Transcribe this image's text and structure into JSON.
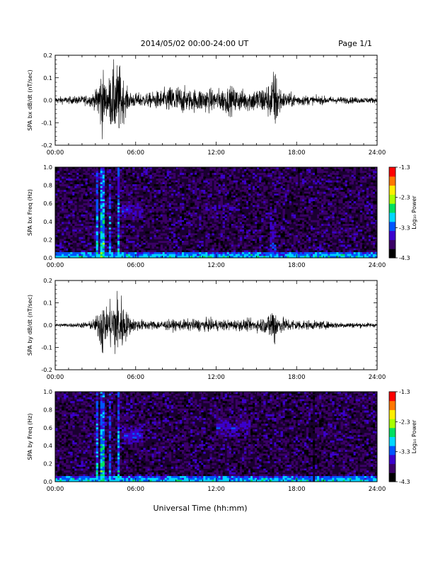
{
  "header": {
    "title": "2014/05/02  00:00-24:00 UT",
    "page": "Page 1/1"
  },
  "xaxis": {
    "label": "Universal Time (hh:mm)",
    "ticks": [
      "00:00",
      "06:00",
      "12:00",
      "18:00",
      "24:00"
    ],
    "range_hours": [
      0,
      24
    ]
  },
  "colorbar": {
    "label": "Log₁₀ Power",
    "ticks": [
      "-1.3",
      "-2.3",
      "-3.3",
      "-4.3"
    ],
    "range": [
      -4.3,
      -1.3
    ],
    "colors": [
      "#000000",
      "#3a0066",
      "#3b00cc",
      "#0055ff",
      "#00d8ff",
      "#00e060",
      "#a8ff00",
      "#ffee00",
      "#ff7700",
      "#ff0000"
    ]
  },
  "chart_data": [
    {
      "type": "line",
      "ylabel": "SPA bx dB/dt (nT/sec)",
      "ylim": [
        -0.2,
        0.2
      ],
      "yticks": [
        "0.2",
        "0.1",
        "0.0",
        "-0.1",
        "-0.2"
      ],
      "xlim": [
        0,
        24
      ],
      "series": [
        {
          "envelope": [
            [
              0,
              0.02
            ],
            [
              1,
              0.02
            ],
            [
              2,
              0.025
            ],
            [
              2.5,
              0.03
            ],
            [
              3,
              0.05
            ],
            [
              3.2,
              0.12
            ],
            [
              3.5,
              0.2
            ],
            [
              3.8,
              0.08
            ],
            [
              4.1,
              0.15
            ],
            [
              4.4,
              0.2
            ],
            [
              4.8,
              0.2
            ],
            [
              5.2,
              0.09
            ],
            [
              5.5,
              0.05
            ],
            [
              6,
              0.04
            ],
            [
              7,
              0.04
            ],
            [
              8,
              0.06
            ],
            [
              9,
              0.09
            ],
            [
              10,
              0.06
            ],
            [
              11,
              0.07
            ],
            [
              12,
              0.06
            ],
            [
              13,
              0.08
            ],
            [
              14,
              0.06
            ],
            [
              15,
              0.07
            ],
            [
              15.5,
              0.08
            ],
            [
              16,
              0.1
            ],
            [
              16.3,
              0.18
            ],
            [
              16.6,
              0.14
            ],
            [
              16.9,
              0.05
            ],
            [
              17.5,
              0.04
            ],
            [
              19,
              0.025
            ],
            [
              21,
              0.02
            ],
            [
              24,
              0.015
            ]
          ]
        }
      ]
    },
    {
      "type": "heatmap",
      "ylabel": "SPA bx Freq (Hz)",
      "ylim": [
        0,
        1.0
      ],
      "yticks": [
        "1.0",
        "0.8",
        "0.6",
        "0.4",
        "0.2",
        "0.0"
      ],
      "xlim": [
        0,
        24
      ],
      "features": [
        {
          "t": [
            3.0,
            3.2
          ],
          "f_max": 1.0,
          "level": -2.6
        },
        {
          "t": [
            3.4,
            3.6
          ],
          "f_max": 1.0,
          "level": -2.4
        },
        {
          "t": [
            4.0,
            4.2
          ],
          "f_max": 1.0,
          "level": -2.8
        },
        {
          "t": [
            4.7,
            4.85
          ],
          "f_max": 1.0,
          "level": -2.6
        },
        {
          "t": [
            5.0,
            6.5
          ],
          "f_center": 0.52,
          "level": -3.3
        },
        {
          "t": [
            11.0,
            13.5
          ],
          "f_center": 0.55,
          "level": -3.5
        },
        {
          "t": [
            16.0,
            16.4
          ],
          "f_max": 0.6,
          "level": -3.2
        }
      ]
    },
    {
      "type": "line",
      "ylabel": "SPA by dB/dt (nT/sec)",
      "ylim": [
        -0.2,
        0.2
      ],
      "yticks": [
        "0.2",
        "0.1",
        "0.0",
        "-0.1",
        "-0.2"
      ],
      "xlim": [
        0,
        24
      ],
      "series": [
        {
          "envelope": [
            [
              0,
              0.01
            ],
            [
              1.5,
              0.012
            ],
            [
              2.5,
              0.02
            ],
            [
              3,
              0.04
            ],
            [
              3.3,
              0.1
            ],
            [
              3.5,
              0.2
            ],
            [
              3.8,
              0.08
            ],
            [
              4.2,
              0.15
            ],
            [
              4.5,
              0.2
            ],
            [
              4.9,
              0.18
            ],
            [
              5.3,
              0.08
            ],
            [
              5.7,
              0.04
            ],
            [
              7,
              0.025
            ],
            [
              9,
              0.03
            ],
            [
              11,
              0.035
            ],
            [
              13,
              0.03
            ],
            [
              15,
              0.035
            ],
            [
              15.8,
              0.05
            ],
            [
              16.1,
              0.1
            ],
            [
              16.3,
              0.14
            ],
            [
              16.6,
              0.05
            ],
            [
              17.5,
              0.035
            ],
            [
              19,
              0.025
            ],
            [
              21,
              0.018
            ],
            [
              24,
              0.012
            ]
          ]
        }
      ]
    },
    {
      "type": "heatmap",
      "ylabel": "SPA by Freq (Hz)",
      "ylim": [
        0,
        1.0
      ],
      "yticks": [
        "1.0",
        "0.8",
        "0.6",
        "0.4",
        "0.2",
        "0.0"
      ],
      "xlim": [
        0,
        24
      ],
      "features": [
        {
          "t": [
            3.0,
            3.2
          ],
          "f_max": 1.0,
          "level": -2.6
        },
        {
          "t": [
            3.4,
            3.6
          ],
          "f_max": 1.0,
          "level": -2.4
        },
        {
          "t": [
            4.0,
            4.2
          ],
          "f_max": 1.0,
          "level": -2.8
        },
        {
          "t": [
            4.7,
            4.85
          ],
          "f_max": 1.0,
          "level": -2.6
        },
        {
          "t": [
            5.0,
            6.5
          ],
          "f_center": 0.52,
          "level": -3.2
        },
        {
          "t": [
            12.0,
            14.5
          ],
          "f_center": 0.6,
          "level": -3.3
        },
        {
          "t": [
            19.2,
            19.35
          ],
          "f_max": 1.0,
          "level": -4.3
        }
      ]
    }
  ]
}
